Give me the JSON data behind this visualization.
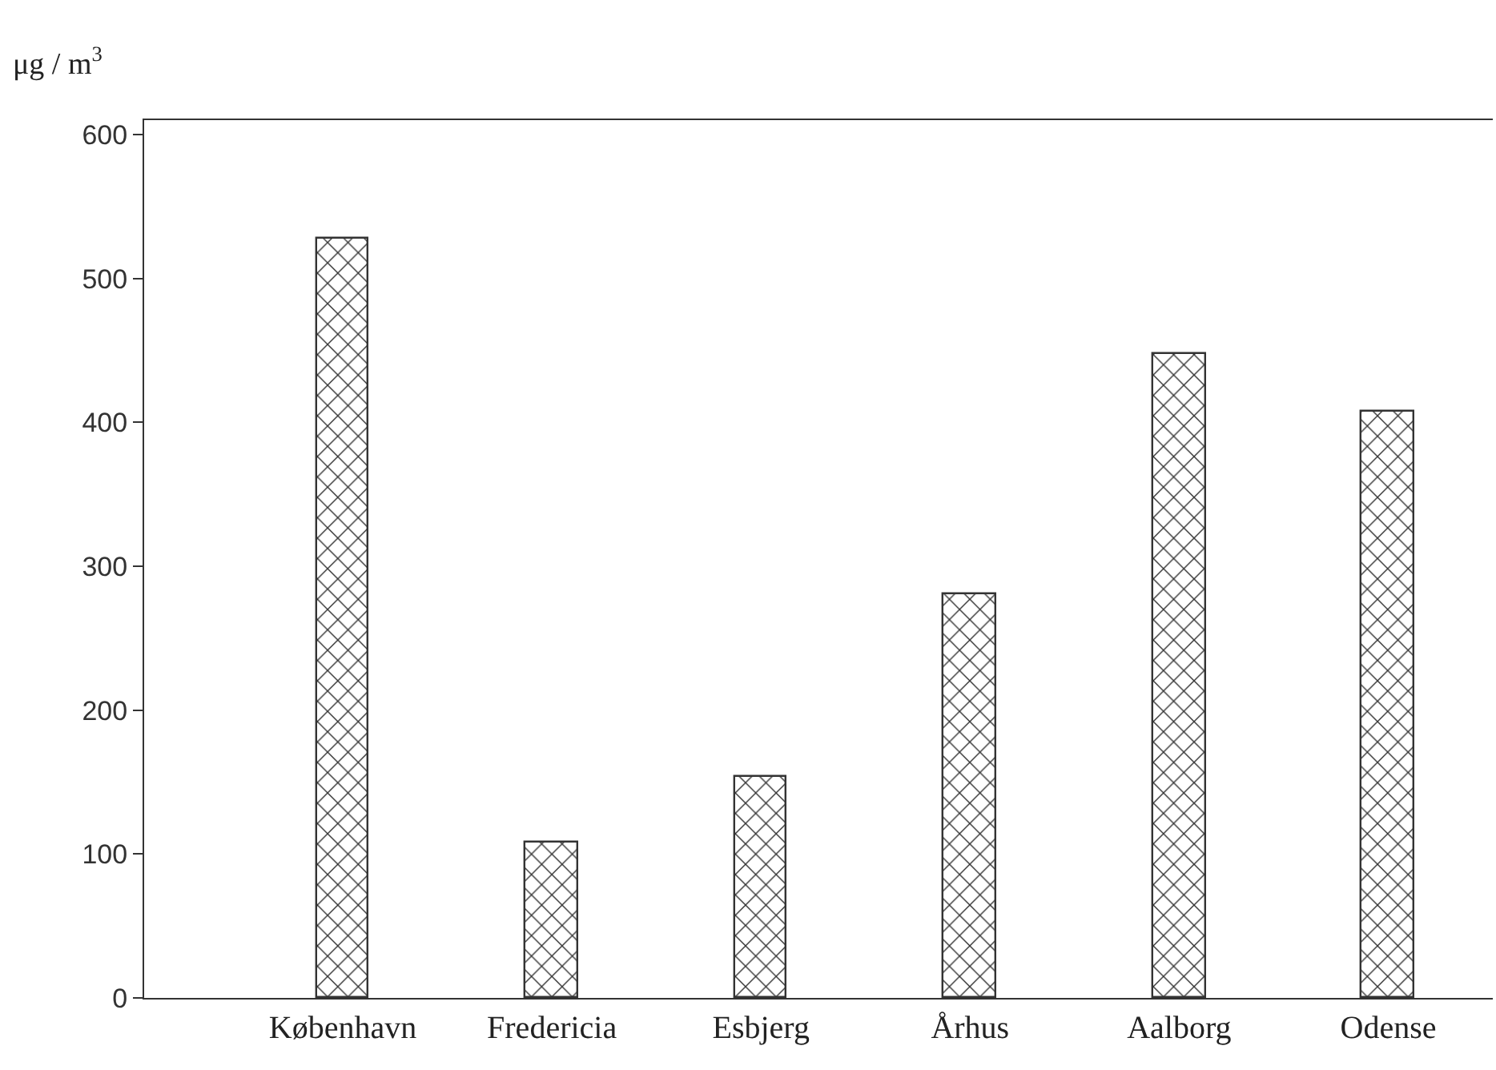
{
  "chart_data": {
    "type": "bar",
    "ylabel": "μg / m$^{3}$",
    "categories": [
      "København",
      "Fredericia",
      "Esbjerg",
      "Århus",
      "Aalborg",
      "Odense"
    ],
    "values": [
      528,
      108,
      154,
      280,
      448,
      407
    ],
    "color": "#333333",
    "ylim": [
      0,
      610
    ],
    "yticks": [
      0,
      100,
      200,
      300,
      400,
      500,
      600
    ],
    "grid": false
  }
}
